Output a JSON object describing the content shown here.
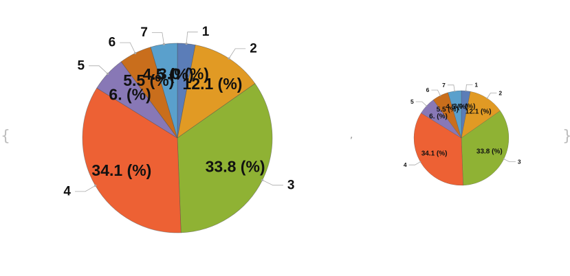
{
  "separator": ",",
  "brace_open": "{",
  "brace_close": "}",
  "colors": {
    "s1": "#5b7db8",
    "s2": "#e19a24",
    "s3": "#8fb234",
    "s4": "#ed6134",
    "s5": "#8878b6",
    "s6": "#c96e1c",
    "s7": "#5aa0cc",
    "leader": "#a8a8a8"
  },
  "chart_data": [
    {
      "type": "pie",
      "title": "",
      "slices": [
        {
          "category": "1",
          "value": 3.0,
          "data_label": "3.0 (%)",
          "color": "#5b7db8"
        },
        {
          "category": "2",
          "value": 12.1,
          "data_label": "12.1 (%)",
          "color": "#e19a24"
        },
        {
          "category": "3",
          "value": 33.8,
          "data_label": "33.8 (%)",
          "color": "#8fb234"
        },
        {
          "category": "4",
          "value": 34.1,
          "data_label": "34.1 (%)",
          "color": "#ed6134"
        },
        {
          "category": "5",
          "value": 6.0,
          "data_label": "6. (%)",
          "color": "#8878b6"
        },
        {
          "category": "6",
          "value": 5.5,
          "data_label": "5.5 (%)",
          "color": "#c96e1c"
        },
        {
          "category": "7",
          "value": 4.5,
          "data_label": "4.5 (%)",
          "color": "#5aa0cc"
        }
      ]
    },
    {
      "type": "pie",
      "title": "",
      "slices": [
        {
          "category": "1",
          "value": 3.0,
          "data_label": "3.0 (%)",
          "color": "#5b7db8"
        },
        {
          "category": "2",
          "value": 12.1,
          "data_label": "12.1 (%)",
          "color": "#e19a24"
        },
        {
          "category": "3",
          "value": 33.8,
          "data_label": "33.8 (%)",
          "color": "#8fb234"
        },
        {
          "category": "4",
          "value": 34.1,
          "data_label": "34.1 (%)",
          "color": "#ed6134"
        },
        {
          "category": "5",
          "value": 6.0,
          "data_label": "6. (%)",
          "color": "#8878b6"
        },
        {
          "category": "6",
          "value": 5.5,
          "data_label": "5.5 (%)",
          "color": "#c96e1c"
        },
        {
          "category": "7",
          "value": 4.5,
          "data_label": "4.5 (%)",
          "color": "#5aa0cc"
        }
      ]
    }
  ]
}
